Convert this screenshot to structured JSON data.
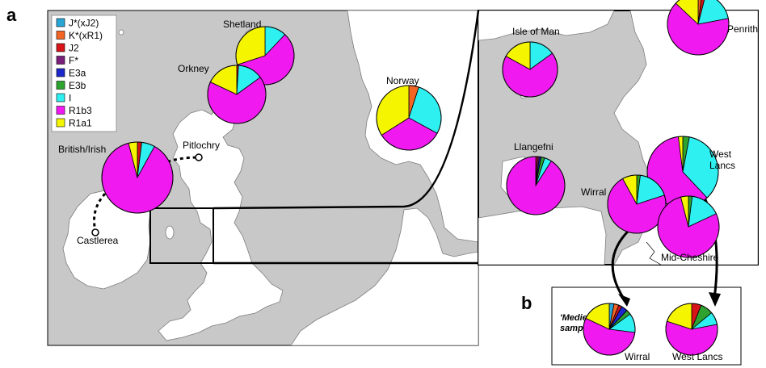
{
  "panels": {
    "a": "a",
    "b": "b"
  },
  "colors": {
    "sea": "#c8c8c8",
    "land": "#ffffff"
  },
  "legend": [
    {
      "label": "J*(xJ2)",
      "color": "#29a6d6"
    },
    {
      "label": "K*(xR1)",
      "color": "#f26522"
    },
    {
      "label": "J2",
      "color": "#d7141a"
    },
    {
      "label": "F*",
      "color": "#7a1f7a"
    },
    {
      "label": "E3a",
      "color": "#1c28c8"
    },
    {
      "label": "E3b",
      "color": "#2fa32f"
    },
    {
      "label": "I",
      "color": "#2ef0f0"
    },
    {
      "label": "R1b3",
      "color": "#f019f0"
    },
    {
      "label": "R1a1",
      "color": "#f5f500"
    }
  ],
  "locations": {
    "shetland": "Shetland",
    "orkney": "Orkney",
    "norway": "Norway",
    "british_irish": "British/Irish",
    "pitlochry": "Pitlochry",
    "castlerea": "Castlerea",
    "isle_of_man": "Isle of Man",
    "penrith": "Penrith",
    "llangefni": "Llangefni",
    "wirral": "Wirral",
    "west": "West",
    "lancs": "Lancs",
    "mid_cheshire": "Mid-Cheshire",
    "medieval_wirral": "Wirral",
    "medieval_west_lancs": "West Lancs"
  },
  "medieval_label": {
    "line1": "'Medieval'",
    "line2": "samples"
  },
  "chart_data": {
    "type": "pie",
    "categories": [
      "J*(xJ2)",
      "K*(xR1)",
      "J2",
      "F*",
      "E3a",
      "E3b",
      "I",
      "R1b3",
      "R1a1"
    ],
    "pies": [
      {
        "name": "Shetland",
        "values": [
          0,
          0,
          0,
          0,
          0,
          0,
          0.12,
          0.58,
          0.3
        ]
      },
      {
        "name": "Orkney",
        "values": [
          0,
          0,
          0.01,
          0,
          0,
          0,
          0.14,
          0.67,
          0.18
        ]
      },
      {
        "name": "Norway",
        "values": [
          0,
          0.05,
          0,
          0,
          0,
          0,
          0.28,
          0.33,
          0.34
        ]
      },
      {
        "name": "British/Irish",
        "values": [
          0,
          0,
          0.02,
          0,
          0,
          0,
          0.06,
          0.88,
          0.04
        ]
      },
      {
        "name": "Isle of Man",
        "values": [
          0,
          0,
          0,
          0,
          0,
          0,
          0.15,
          0.68,
          0.17
        ]
      },
      {
        "name": "Penrith",
        "values": [
          0,
          0.02,
          0.02,
          0,
          0,
          0,
          0.18,
          0.65,
          0.13
        ]
      },
      {
        "name": "Llangefni",
        "values": [
          0,
          0,
          0.01,
          0.01,
          0.01,
          0.02,
          0.04,
          0.91,
          0
        ]
      },
      {
        "name": "West Lancs",
        "values": [
          0,
          0,
          0,
          0,
          0,
          0.03,
          0.35,
          0.6,
          0.02
        ]
      },
      {
        "name": "Wirral",
        "values": [
          0,
          0,
          0,
          0,
          0,
          0.02,
          0.18,
          0.72,
          0.08
        ]
      },
      {
        "name": "Mid-Cheshire",
        "values": [
          0,
          0,
          0,
          0,
          0,
          0.02,
          0.16,
          0.78,
          0.04
        ]
      },
      {
        "name": "'Medieval' Wirral",
        "values": [
          0.03,
          0.03,
          0.02,
          0,
          0.04,
          0.03,
          0.12,
          0.55,
          0.18
        ]
      },
      {
        "name": "'Medieval' West Lancs",
        "values": [
          0,
          0,
          0.06,
          0,
          0,
          0.08,
          0.08,
          0.58,
          0.2
        ]
      }
    ]
  }
}
